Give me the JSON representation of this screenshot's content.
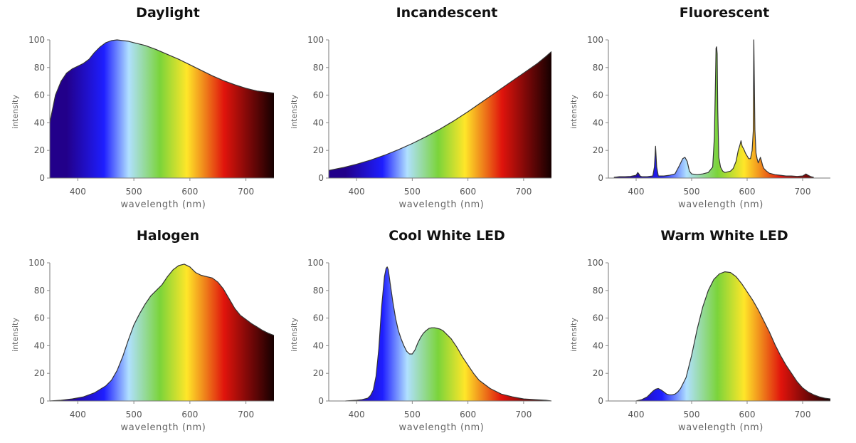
{
  "spectrum_colors": [
    "#22008a",
    "#1e1eff",
    "#b0e0ff",
    "#7bd43a",
    "#ffe629",
    "#f08a1c",
    "#e0140c",
    "#7a0808",
    "#150000"
  ],
  "chart_data": [
    {
      "type": "area",
      "title": "Daylight",
      "xlabel": "wavelength (nm)",
      "ylabel": "intensity",
      "xlim": [
        350,
        750
      ],
      "ylim": [
        0,
        100
      ],
      "xticks": [
        "400",
        "500",
        "600",
        "700"
      ],
      "yticks": [
        "0",
        "20",
        "40",
        "60",
        "80",
        "100"
      ],
      "series": [
        {
          "name": "Daylight",
          "x": [
            350,
            360,
            370,
            380,
            390,
            400,
            410,
            420,
            430,
            440,
            450,
            460,
            470,
            480,
            490,
            500,
            520,
            540,
            560,
            580,
            600,
            620,
            640,
            660,
            680,
            700,
            720,
            740,
            750
          ],
          "y": [
            40,
            60,
            70,
            76,
            79,
            81,
            83,
            86,
            91,
            95,
            98,
            99.5,
            100,
            99.5,
            99,
            98,
            96,
            93,
            89.5,
            86,
            82,
            78,
            74,
            70.5,
            67.5,
            65,
            63,
            62,
            61.5
          ]
        }
      ]
    },
    {
      "type": "area",
      "title": "Incandescent",
      "xlabel": "wavelength (nm)",
      "ylabel": "intensity",
      "xlim": [
        350,
        750
      ],
      "ylim": [
        0,
        100
      ],
      "xticks": [
        "400",
        "500",
        "600",
        "700"
      ],
      "yticks": [
        "0",
        "20",
        "40",
        "60",
        "80",
        "100"
      ],
      "series": [
        {
          "name": "Incandescent",
          "x": [
            350,
            375,
            400,
            425,
            450,
            475,
            500,
            525,
            550,
            575,
            600,
            625,
            650,
            675,
            700,
            725,
            740,
            750
          ],
          "y": [
            5.5,
            7.5,
            10,
            13,
            16.5,
            20.5,
            25,
            30,
            35.5,
            41.5,
            48,
            55,
            62,
            69,
            76,
            83,
            88,
            91.5
          ]
        }
      ]
    },
    {
      "type": "area",
      "title": "Fluorescent",
      "xlabel": "wavelength (nm)",
      "ylabel": "intensity",
      "xlim": [
        350,
        750
      ],
      "ylim": [
        0,
        100
      ],
      "xticks": [
        "400",
        "500",
        "600",
        "700"
      ],
      "yticks": [
        "0",
        "20",
        "40",
        "60",
        "80",
        "100"
      ],
      "series": [
        {
          "name": "Fluorescent",
          "x": [
            360,
            370,
            380,
            390,
            400,
            403,
            405,
            407,
            410,
            420,
            430,
            433,
            435,
            437,
            440,
            450,
            460,
            470,
            478,
            484,
            488,
            492,
            496,
            500,
            510,
            520,
            530,
            538,
            541,
            543,
            544,
            545,
            546,
            547,
            549,
            552,
            556,
            560,
            570,
            575,
            580,
            584,
            587,
            589,
            591,
            594,
            597,
            600,
            603,
            606,
            609,
            611,
            612,
            613,
            614,
            616,
            618,
            620,
            624,
            626,
            628,
            630,
            635,
            640,
            650,
            660,
            670,
            680,
            690,
            700,
            706,
            710,
            715,
            720
          ],
          "y": [
            0.5,
            1,
            1,
            1.2,
            2,
            4,
            3,
            1.5,
            1,
            1,
            1.5,
            8,
            23,
            8,
            1.5,
            1.5,
            2,
            3,
            9,
            14,
            15,
            12,
            5,
            3,
            2.5,
            3,
            4,
            8,
            30,
            70,
            94,
            95,
            90,
            50,
            15,
            8,
            5,
            4,
            5,
            7,
            12,
            20,
            24,
            27,
            23,
            21,
            18,
            16,
            14,
            14,
            20,
            34,
            100,
            70,
            35,
            18,
            14,
            11,
            15,
            12,
            9,
            7,
            5,
            3.5,
            2.5,
            2,
            1.5,
            1.5,
            1.2,
            1.5,
            3,
            2,
            1,
            0.5
          ]
        }
      ]
    },
    {
      "type": "area",
      "title": "Halogen",
      "xlabel": "wavelength (nm)",
      "ylabel": "intensity",
      "xlim": [
        350,
        750
      ],
      "ylim": [
        0,
        100
      ],
      "xticks": [
        "400",
        "500",
        "600",
        "700"
      ],
      "yticks": [
        "0",
        "20",
        "40",
        "60",
        "80",
        "100"
      ],
      "series": [
        {
          "name": "Halogen",
          "x": [
            350,
            370,
            390,
            410,
            430,
            450,
            460,
            470,
            480,
            490,
            500,
            510,
            520,
            530,
            540,
            550,
            560,
            570,
            580,
            590,
            600,
            610,
            620,
            630,
            640,
            650,
            660,
            670,
            680,
            690,
            700,
            710,
            720,
            730,
            740,
            750
          ],
          "y": [
            0,
            0.5,
            1.5,
            3,
            6,
            11,
            15,
            22,
            32,
            44,
            55,
            63,
            70,
            76,
            80,
            84,
            90,
            95,
            98,
            99,
            97,
            93,
            91,
            90,
            89,
            86,
            81,
            74,
            67,
            62,
            59,
            56,
            53.5,
            51,
            49,
            47.5
          ]
        }
      ]
    },
    {
      "type": "area",
      "title": "Cool White LED",
      "xlabel": "wavelength (nm)",
      "ylabel": "intensity",
      "xlim": [
        350,
        750
      ],
      "ylim": [
        0,
        100
      ],
      "xticks": [
        "400",
        "500",
        "600",
        "700"
      ],
      "yticks": [
        "0",
        "20",
        "40",
        "60",
        "80",
        "100"
      ],
      "series": [
        {
          "name": "Cool White LED",
          "x": [
            380,
            400,
            410,
            420,
            425,
            430,
            435,
            440,
            445,
            450,
            453,
            455,
            457,
            460,
            465,
            470,
            475,
            480,
            485,
            490,
            495,
            500,
            505,
            510,
            515,
            520,
            525,
            530,
            535,
            540,
            545,
            550,
            555,
            560,
            570,
            580,
            590,
            600,
            610,
            620,
            640,
            660,
            680,
            700,
            720,
            740,
            750
          ],
          "y": [
            0,
            0.5,
            1,
            2,
            4,
            8,
            18,
            38,
            68,
            90,
            96,
            97,
            95,
            86,
            72,
            60,
            51,
            45,
            40,
            36,
            34,
            34,
            37,
            42,
            46,
            49,
            51,
            52.5,
            53,
            53,
            52.5,
            52,
            51,
            49,
            45,
            39,
            32,
            26,
            20,
            15,
            9,
            5,
            3,
            1.5,
            1,
            0.5,
            0
          ]
        }
      ]
    },
    {
      "type": "area",
      "title": "Warm White LED",
      "xlabel": "wavelength (nm)",
      "ylabel": "intensity",
      "xlim": [
        350,
        750
      ],
      "ylim": [
        0,
        100
      ],
      "xticks": [
        "400",
        "500",
        "600",
        "700"
      ],
      "yticks": [
        "0",
        "20",
        "40",
        "60",
        "80",
        "100"
      ],
      "series": [
        {
          "name": "Warm White LED",
          "x": [
            400,
            410,
            420,
            425,
            430,
            435,
            440,
            445,
            450,
            455,
            460,
            465,
            470,
            475,
            480,
            490,
            500,
            510,
            520,
            530,
            540,
            550,
            560,
            570,
            580,
            590,
            600,
            610,
            620,
            630,
            640,
            650,
            660,
            670,
            680,
            690,
            700,
            710,
            720,
            730,
            740,
            750
          ],
          "y": [
            0,
            1,
            3,
            5,
            7,
            8.5,
            9,
            8,
            6.5,
            5,
            4.5,
            4.5,
            5,
            6.5,
            9,
            17,
            33,
            52,
            68,
            80,
            88,
            92,
            93.5,
            93,
            90,
            85,
            79,
            73,
            66,
            58,
            50,
            41,
            33,
            26,
            20,
            14,
            9.5,
            6.5,
            4.5,
            3,
            2,
            1.5
          ]
        }
      ]
    }
  ]
}
